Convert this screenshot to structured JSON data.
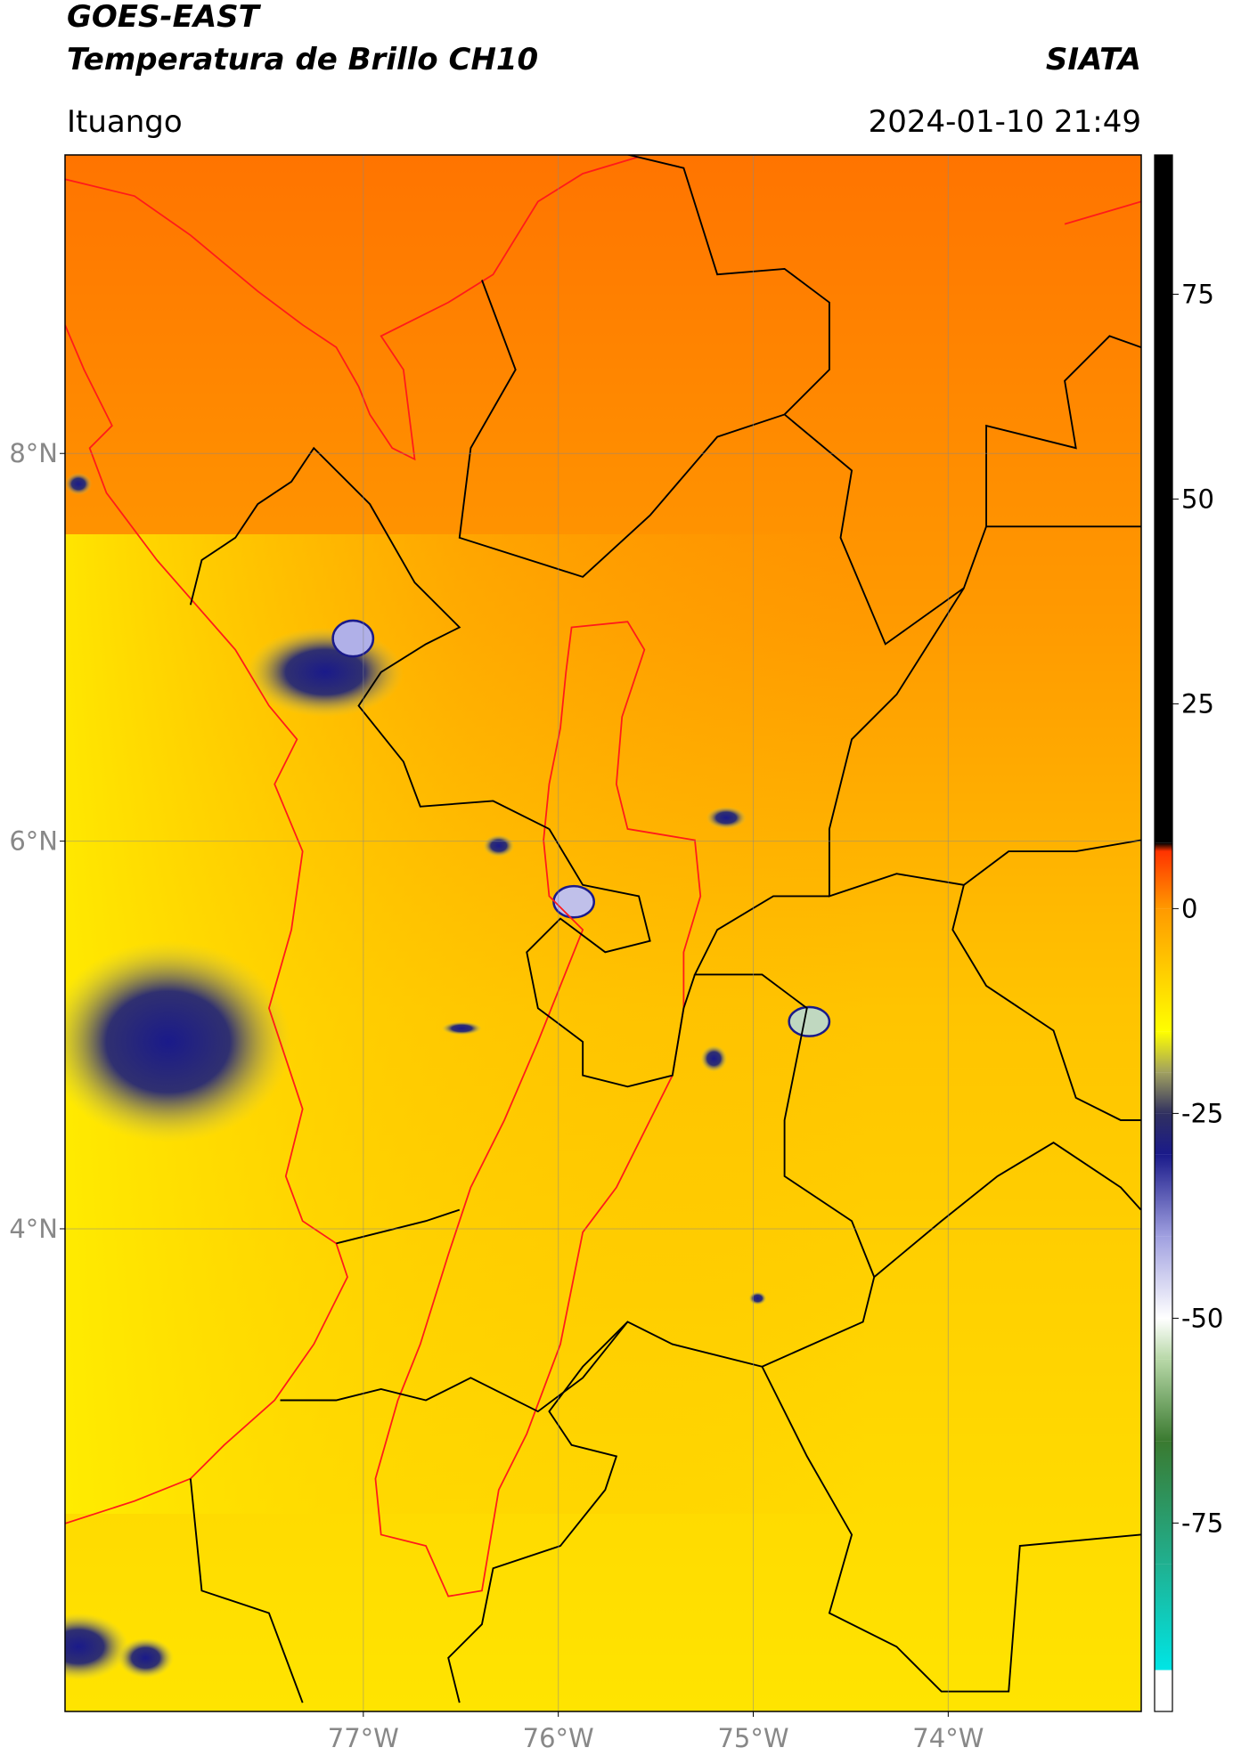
{
  "header": {
    "title": "GOES-EAST",
    "subtitle": "Temperatura de Brillo CH10",
    "source": "SIATA",
    "location": "Ituango",
    "datetime": "2024-01-10 21:49"
  },
  "map": {
    "xlim": [
      -78.53,
      -73.01
    ],
    "ylim": [
      1.51,
      9.54
    ],
    "grid": true,
    "lat_ticks": [
      {
        "value": 8,
        "label": "8°N"
      },
      {
        "value": 6,
        "label": "6°N"
      },
      {
        "value": 4,
        "label": "4°N"
      }
    ],
    "lon_ticks": [
      {
        "value": -77,
        "label": "77°W"
      },
      {
        "value": -76,
        "label": "76°W"
      },
      {
        "value": -75,
        "label": "75°W"
      },
      {
        "value": -74,
        "label": "74°W"
      }
    ]
  },
  "colorbar": {
    "lim": [
      -98,
      92
    ],
    "ticks": [
      75,
      50,
      25,
      0,
      -25,
      -50,
      -75
    ],
    "colormap": [
      {
        "value": -98,
        "color": "#ffffff"
      },
      {
        "value": -93,
        "color": "#ffffff"
      },
      {
        "value": -92.9,
        "color": "#00e5e5"
      },
      {
        "value": -80,
        "color": "#20b090"
      },
      {
        "value": -65,
        "color": "#3a7a30"
      },
      {
        "value": -55,
        "color": "#b8d8a8"
      },
      {
        "value": -50,
        "color": "#ffffff"
      },
      {
        "value": -40,
        "color": "#a0a0e0"
      },
      {
        "value": -30,
        "color": "#1a1a8a"
      },
      {
        "value": -25,
        "color": "#303060"
      },
      {
        "value": -20,
        "color": "#a0a060"
      },
      {
        "value": -15,
        "color": "#ffff00"
      },
      {
        "value": 0,
        "color": "#ff9900"
      },
      {
        "value": 7,
        "color": "#ff3300"
      },
      {
        "value": 8,
        "color": "#000000"
      },
      {
        "value": 92,
        "color": "#000000"
      }
    ]
  }
}
